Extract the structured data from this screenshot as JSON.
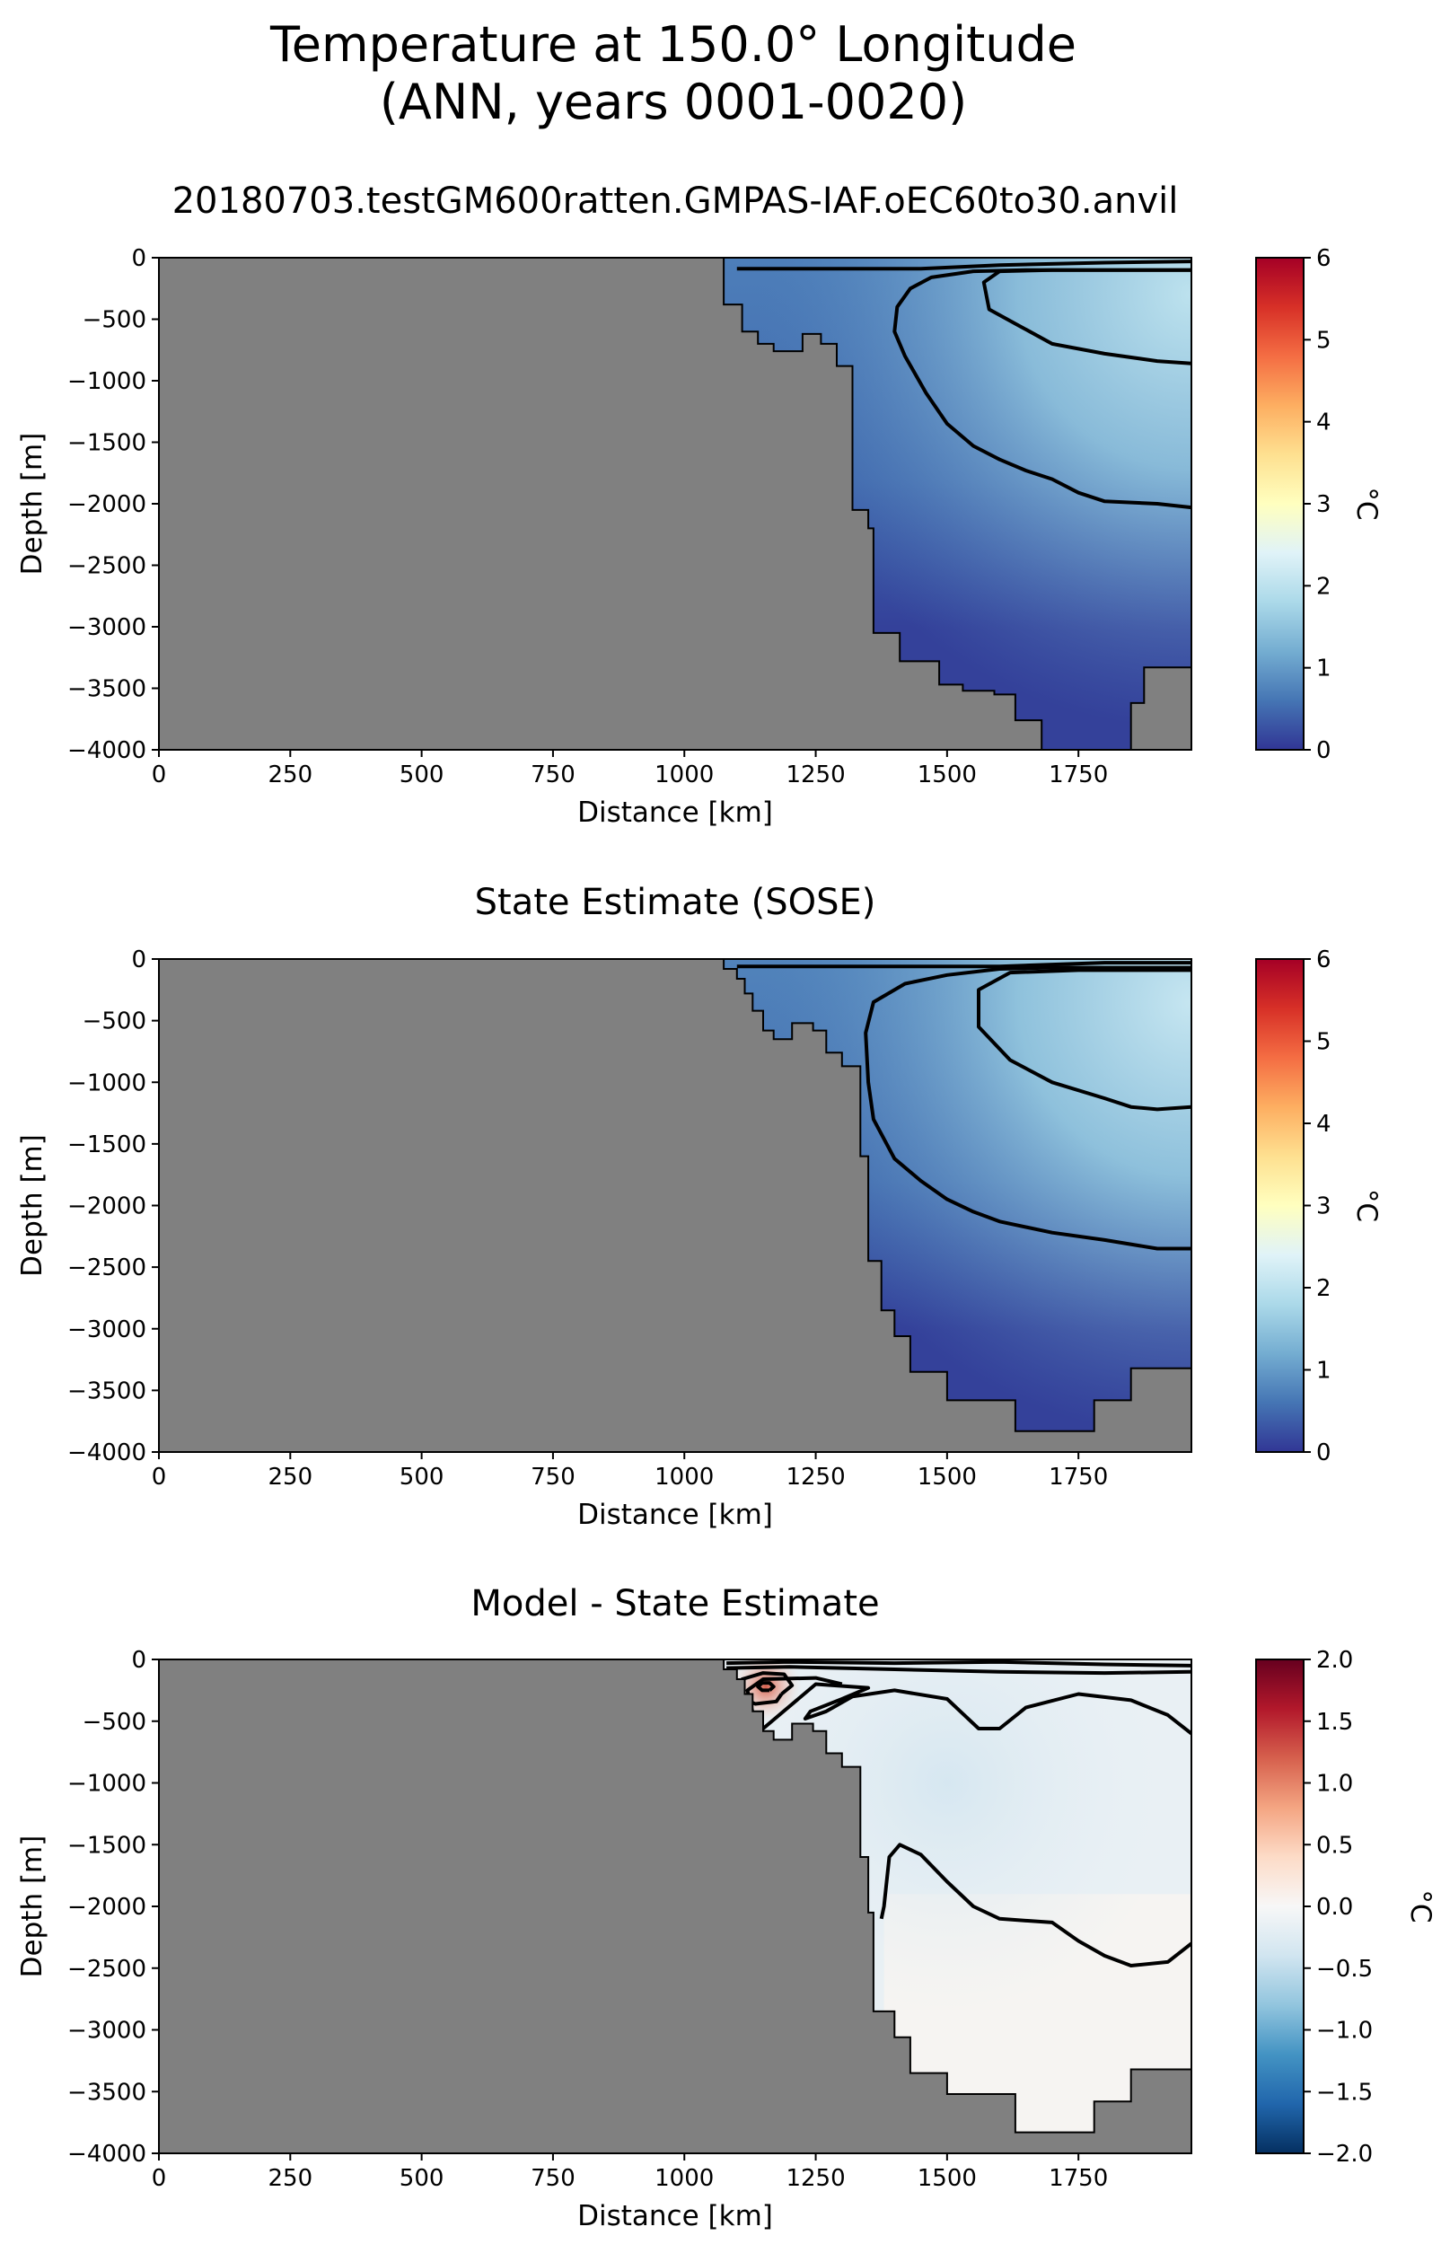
{
  "figure": {
    "title_line1": "Temperature at 150.0° Longitude",
    "title_line2": "(ANN, years 0001-0020)"
  },
  "chart_data": [
    {
      "type": "heatmap",
      "title": "20180703.testGM600ratten.GMPAS-IAF.oEC60to30.anvil",
      "xlabel": "Distance [km]",
      "ylabel": "Depth [m]",
      "xlim": [
        0,
        1965
      ],
      "ylim": [
        -4000,
        0
      ],
      "xticks": [
        0,
        250,
        500,
        750,
        1000,
        1250,
        1500,
        1750
      ],
      "yticks": [
        0,
        -500,
        -1000,
        -1500,
        -2000,
        -2500,
        -3000,
        -3500,
        -4000
      ],
      "colorbar": {
        "label": "°C",
        "min": 0,
        "max": 6,
        "ticks": [
          0,
          1,
          2,
          3,
          4,
          5,
          6
        ],
        "colormap": "RdYlBu_r"
      },
      "land_color": "#808080",
      "bathymetry": [
        [
          1075,
          0
        ],
        [
          1075,
          -380
        ],
        [
          1110,
          -380
        ],
        [
          1110,
          -600
        ],
        [
          1140,
          -600
        ],
        [
          1140,
          -700
        ],
        [
          1170,
          -700
        ],
        [
          1170,
          -760
        ],
        [
          1225,
          -760
        ],
        [
          1225,
          -620
        ],
        [
          1260,
          -620
        ],
        [
          1260,
          -700
        ],
        [
          1290,
          -700
        ],
        [
          1290,
          -880
        ],
        [
          1320,
          -880
        ],
        [
          1320,
          -2050
        ],
        [
          1350,
          -2050
        ],
        [
          1350,
          -2200
        ],
        [
          1360,
          -2200
        ],
        [
          1360,
          -3050
        ],
        [
          1410,
          -3050
        ],
        [
          1410,
          -3280
        ],
        [
          1485,
          -3280
        ],
        [
          1485,
          -3470
        ],
        [
          1530,
          -3470
        ],
        [
          1530,
          -3520
        ],
        [
          1590,
          -3520
        ],
        [
          1590,
          -3550
        ],
        [
          1630,
          -3550
        ],
        [
          1630,
          -3760
        ],
        [
          1680,
          -3760
        ],
        [
          1680,
          -4000
        ],
        [
          1850,
          -4000
        ],
        [
          1850,
          -3620
        ],
        [
          1875,
          -3620
        ],
        [
          1875,
          -3330
        ],
        [
          1965,
          -3330
        ]
      ],
      "contours": [
        {
          "level": 1,
          "points": [
            [
              1965,
              -30
            ],
            [
              1800,
              -40
            ],
            [
              1600,
              -60
            ],
            [
              1450,
              -90
            ],
            [
              1100,
              -90
            ]
          ]
        },
        {
          "level": 1,
          "points": [
            [
              1965,
              -2030
            ],
            [
              1900,
              -2000
            ],
            [
              1800,
              -1980
            ],
            [
              1750,
              -1910
            ],
            [
              1700,
              -1800
            ],
            [
              1650,
              -1730
            ],
            [
              1600,
              -1640
            ],
            [
              1550,
              -1530
            ],
            [
              1500,
              -1350
            ],
            [
              1460,
              -1100
            ],
            [
              1420,
              -800
            ],
            [
              1400,
              -600
            ],
            [
              1405,
              -400
            ],
            [
              1430,
              -250
            ],
            [
              1470,
              -160
            ],
            [
              1550,
              -110
            ],
            [
              1650,
              -100
            ],
            [
              1800,
              -100
            ],
            [
              1965,
              -100
            ]
          ]
        },
        {
          "level": 2,
          "points": [
            [
              1965,
              -860
            ],
            [
              1900,
              -840
            ],
            [
              1800,
              -780
            ],
            [
              1700,
              -700
            ],
            [
              1640,
              -560
            ],
            [
              1580,
              -420
            ],
            [
              1570,
              -200
            ],
            [
              1600,
              -110
            ],
            [
              1700,
              -100
            ],
            [
              1965,
              -100
            ]
          ]
        }
      ],
      "field": {
        "deep_value": 0.1,
        "mid_value": 0.7,
        "core_value": 2.0,
        "core_center": [
          1965,
          -300
        ]
      }
    },
    {
      "type": "heatmap",
      "title": "State Estimate (SOSE)",
      "xlabel": "Distance [km]",
      "ylabel": "Depth [m]",
      "xlim": [
        0,
        1965
      ],
      "ylim": [
        -4000,
        0
      ],
      "xticks": [
        0,
        250,
        500,
        750,
        1000,
        1250,
        1500,
        1750
      ],
      "yticks": [
        0,
        -500,
        -1000,
        -1500,
        -2000,
        -2500,
        -3000,
        -3500,
        -4000
      ],
      "colorbar": {
        "label": "°C",
        "min": 0,
        "max": 6,
        "ticks": [
          0,
          1,
          2,
          3,
          4,
          5,
          6
        ],
        "colormap": "RdYlBu_r"
      },
      "land_color": "#808080",
      "bathymetry": [
        [
          1075,
          0
        ],
        [
          1075,
          -80
        ],
        [
          1100,
          -80
        ],
        [
          1100,
          -160
        ],
        [
          1115,
          -160
        ],
        [
          1115,
          -280
        ],
        [
          1130,
          -280
        ],
        [
          1130,
          -420
        ],
        [
          1150,
          -420
        ],
        [
          1150,
          -580
        ],
        [
          1170,
          -580
        ],
        [
          1170,
          -650
        ],
        [
          1205,
          -650
        ],
        [
          1205,
          -520
        ],
        [
          1245,
          -520
        ],
        [
          1245,
          -580
        ],
        [
          1270,
          -580
        ],
        [
          1270,
          -760
        ],
        [
          1300,
          -760
        ],
        [
          1300,
          -870
        ],
        [
          1335,
          -870
        ],
        [
          1335,
          -1600
        ],
        [
          1350,
          -1600
        ],
        [
          1350,
          -2450
        ],
        [
          1375,
          -2450
        ],
        [
          1375,
          -2850
        ],
        [
          1400,
          -2850
        ],
        [
          1400,
          -3060
        ],
        [
          1430,
          -3060
        ],
        [
          1430,
          -3350
        ],
        [
          1500,
          -3350
        ],
        [
          1500,
          -3580
        ],
        [
          1630,
          -3580
        ],
        [
          1630,
          -3830
        ],
        [
          1780,
          -3830
        ],
        [
          1780,
          -3580
        ],
        [
          1850,
          -3580
        ],
        [
          1850,
          -3320
        ],
        [
          1965,
          -3320
        ]
      ],
      "contours": [
        {
          "level": 1,
          "points": [
            [
              1965,
              -30
            ],
            [
              1800,
              -30
            ],
            [
              1600,
              -60
            ],
            [
              1100,
              -60
            ]
          ]
        },
        {
          "level": 1,
          "points": [
            [
              1965,
              -2350
            ],
            [
              1900,
              -2350
            ],
            [
              1800,
              -2280
            ],
            [
              1700,
              -2220
            ],
            [
              1600,
              -2130
            ],
            [
              1550,
              -2050
            ],
            [
              1500,
              -1950
            ],
            [
              1450,
              -1800
            ],
            [
              1400,
              -1620
            ],
            [
              1360,
              -1300
            ],
            [
              1350,
              -1000
            ],
            [
              1345,
              -600
            ],
            [
              1360,
              -350
            ],
            [
              1420,
              -200
            ],
            [
              1500,
              -130
            ],
            [
              1600,
              -80
            ],
            [
              1700,
              -70
            ],
            [
              1965,
              -70
            ]
          ]
        },
        {
          "level": 2,
          "points": [
            [
              1965,
              -1200
            ],
            [
              1900,
              -1220
            ],
            [
              1850,
              -1200
            ],
            [
              1800,
              -1130
            ],
            [
              1700,
              -1000
            ],
            [
              1620,
              -820
            ],
            [
              1560,
              -550
            ],
            [
              1560,
              -250
            ],
            [
              1620,
              -110
            ],
            [
              1750,
              -90
            ],
            [
              1965,
              -90
            ]
          ]
        }
      ],
      "field": {
        "deep_value": 0.1,
        "mid_value": 0.75,
        "core_value": 2.1,
        "core_center": [
          1965,
          -350
        ]
      }
    },
    {
      "type": "heatmap",
      "title": "Model - State Estimate",
      "xlabel": "Distance [km]",
      "ylabel": "Depth [m]",
      "xlim": [
        0,
        1965
      ],
      "ylim": [
        -4000,
        0
      ],
      "xticks": [
        0,
        250,
        500,
        750,
        1000,
        1250,
        1500,
        1750
      ],
      "yticks": [
        0,
        -500,
        -1000,
        -1500,
        -2000,
        -2500,
        -3000,
        -3500,
        -4000
      ],
      "colorbar": {
        "label": "°C",
        "min": -2.0,
        "max": 2.0,
        "ticks": [
          -2.0,
          -1.5,
          -1.0,
          -0.5,
          0.0,
          0.5,
          1.0,
          1.5,
          2.0
        ],
        "colormap": "RdBu_r"
      },
      "land_color": "#808080",
      "bathymetry": [
        [
          1075,
          0
        ],
        [
          1075,
          -80
        ],
        [
          1100,
          -80
        ],
        [
          1100,
          -160
        ],
        [
          1115,
          -160
        ],
        [
          1115,
          -280
        ],
        [
          1130,
          -280
        ],
        [
          1130,
          -420
        ],
        [
          1150,
          -420
        ],
        [
          1150,
          -580
        ],
        [
          1170,
          -580
        ],
        [
          1170,
          -650
        ],
        [
          1205,
          -650
        ],
        [
          1205,
          -520
        ],
        [
          1245,
          -520
        ],
        [
          1245,
          -580
        ],
        [
          1270,
          -580
        ],
        [
          1270,
          -760
        ],
        [
          1300,
          -760
        ],
        [
          1300,
          -870
        ],
        [
          1335,
          -870
        ],
        [
          1335,
          -1600
        ],
        [
          1350,
          -1600
        ],
        [
          1350,
          -2050
        ],
        [
          1360,
          -2050
        ],
        [
          1360,
          -2850
        ],
        [
          1400,
          -2850
        ],
        [
          1400,
          -3060
        ],
        [
          1430,
          -3060
        ],
        [
          1430,
          -3350
        ],
        [
          1500,
          -3350
        ],
        [
          1500,
          -3520
        ],
        [
          1630,
          -3520
        ],
        [
          1630,
          -3830
        ],
        [
          1780,
          -3830
        ],
        [
          1780,
          -3580
        ],
        [
          1850,
          -3580
        ],
        [
          1850,
          -3320
        ],
        [
          1965,
          -3320
        ]
      ],
      "contours": [
        {
          "level": 0,
          "points": [
            [
              1965,
              -100
            ],
            [
              1800,
              -110
            ],
            [
              1600,
              -100
            ],
            [
              1400,
              -80
            ],
            [
              1200,
              -60
            ],
            [
              1080,
              -70
            ]
          ]
        },
        {
          "level": 0,
          "points": [
            [
              1965,
              -50
            ],
            [
              1800,
              -40
            ],
            [
              1600,
              -20
            ],
            [
              1400,
              -30
            ],
            [
              1200,
              -20
            ],
            [
              1080,
              -30
            ]
          ]
        },
        {
          "level": 0,
          "points": [
            [
              1965,
              -600
            ],
            [
              1920,
              -450
            ],
            [
              1850,
              -330
            ],
            [
              1750,
              -280
            ],
            [
              1650,
              -390
            ],
            [
              1600,
              -560
            ],
            [
              1560,
              -560
            ],
            [
              1500,
              -320
            ],
            [
              1400,
              -250
            ],
            [
              1320,
              -300
            ],
            [
              1270,
              -420
            ],
            [
              1230,
              -480
            ],
            [
              1240,
              -420
            ],
            [
              1300,
              -320
            ],
            [
              1350,
              -230
            ],
            [
              1250,
              -200
            ],
            [
              1150,
              -560
            ],
            [
              1130,
              -430
            ],
            [
              1120,
              -250
            ],
            [
              1150,
              -160
            ],
            [
              1250,
              -150
            ],
            [
              1300,
              -200
            ]
          ]
        },
        {
          "level": 0,
          "points": [
            [
              1965,
              -2300
            ],
            [
              1920,
              -2450
            ],
            [
              1850,
              -2480
            ],
            [
              1800,
              -2400
            ],
            [
              1750,
              -2280
            ],
            [
              1700,
              -2130
            ],
            [
              1600,
              -2100
            ],
            [
              1550,
              -2000
            ],
            [
              1500,
              -1800
            ],
            [
              1450,
              -1580
            ],
            [
              1410,
              -1500
            ],
            [
              1390,
              -1600
            ],
            [
              1380,
              -2000
            ],
            [
              1375,
              -2100
            ]
          ]
        },
        {
          "level": 1.0,
          "points": [
            [
              1185,
              -280
            ],
            [
              1205,
              -210
            ],
            [
              1190,
              -120
            ],
            [
              1150,
              -110
            ],
            [
              1110,
              -160
            ],
            [
              1105,
              -300
            ],
            [
              1135,
              -360
            ],
            [
              1175,
              -340
            ],
            [
              1185,
              -280
            ]
          ]
        },
        {
          "level": 1.5,
          "points": [
            [
              1162,
              -250
            ],
            [
              1170,
              -220
            ],
            [
              1162,
              -190
            ],
            [
              1148,
              -190
            ],
            [
              1140,
              -220
            ],
            [
              1148,
              -250
            ],
            [
              1162,
              -250
            ]
          ]
        }
      ],
      "field": {
        "background_value": -0.15,
        "cold_value": -0.35,
        "warm_deep_value": 0.05,
        "hot_spot_value": 1.2,
        "hot_spot_center": [
          1155,
          -220
        ]
      }
    }
  ]
}
